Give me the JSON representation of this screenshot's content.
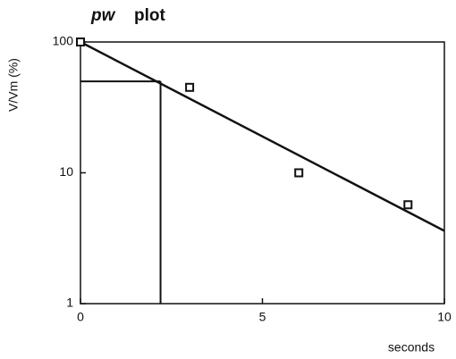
{
  "chart_data": {
    "type": "scatter",
    "title_symbol": "pw",
    "title": "plot",
    "x_label": "seconds",
    "y_label": "V/Vm (%)",
    "series": [
      {
        "x": [
          0,
          3,
          6,
          9
        ],
        "values": [
          100,
          45,
          10,
          5.7
        ],
        "color": "#111111"
      }
    ],
    "fit": {
      "x": [
        0,
        10
      ],
      "values": [
        100,
        3.6
      ],
      "color": "#111111"
    },
    "reference": {
      "x": 2.2,
      "y": 50
    },
    "xlim": [
      0,
      10
    ],
    "ylim": [
      1,
      100
    ],
    "xticks": [
      0,
      5,
      10
    ],
    "yticks": [
      1,
      10,
      100
    ],
    "log_y": true
  }
}
